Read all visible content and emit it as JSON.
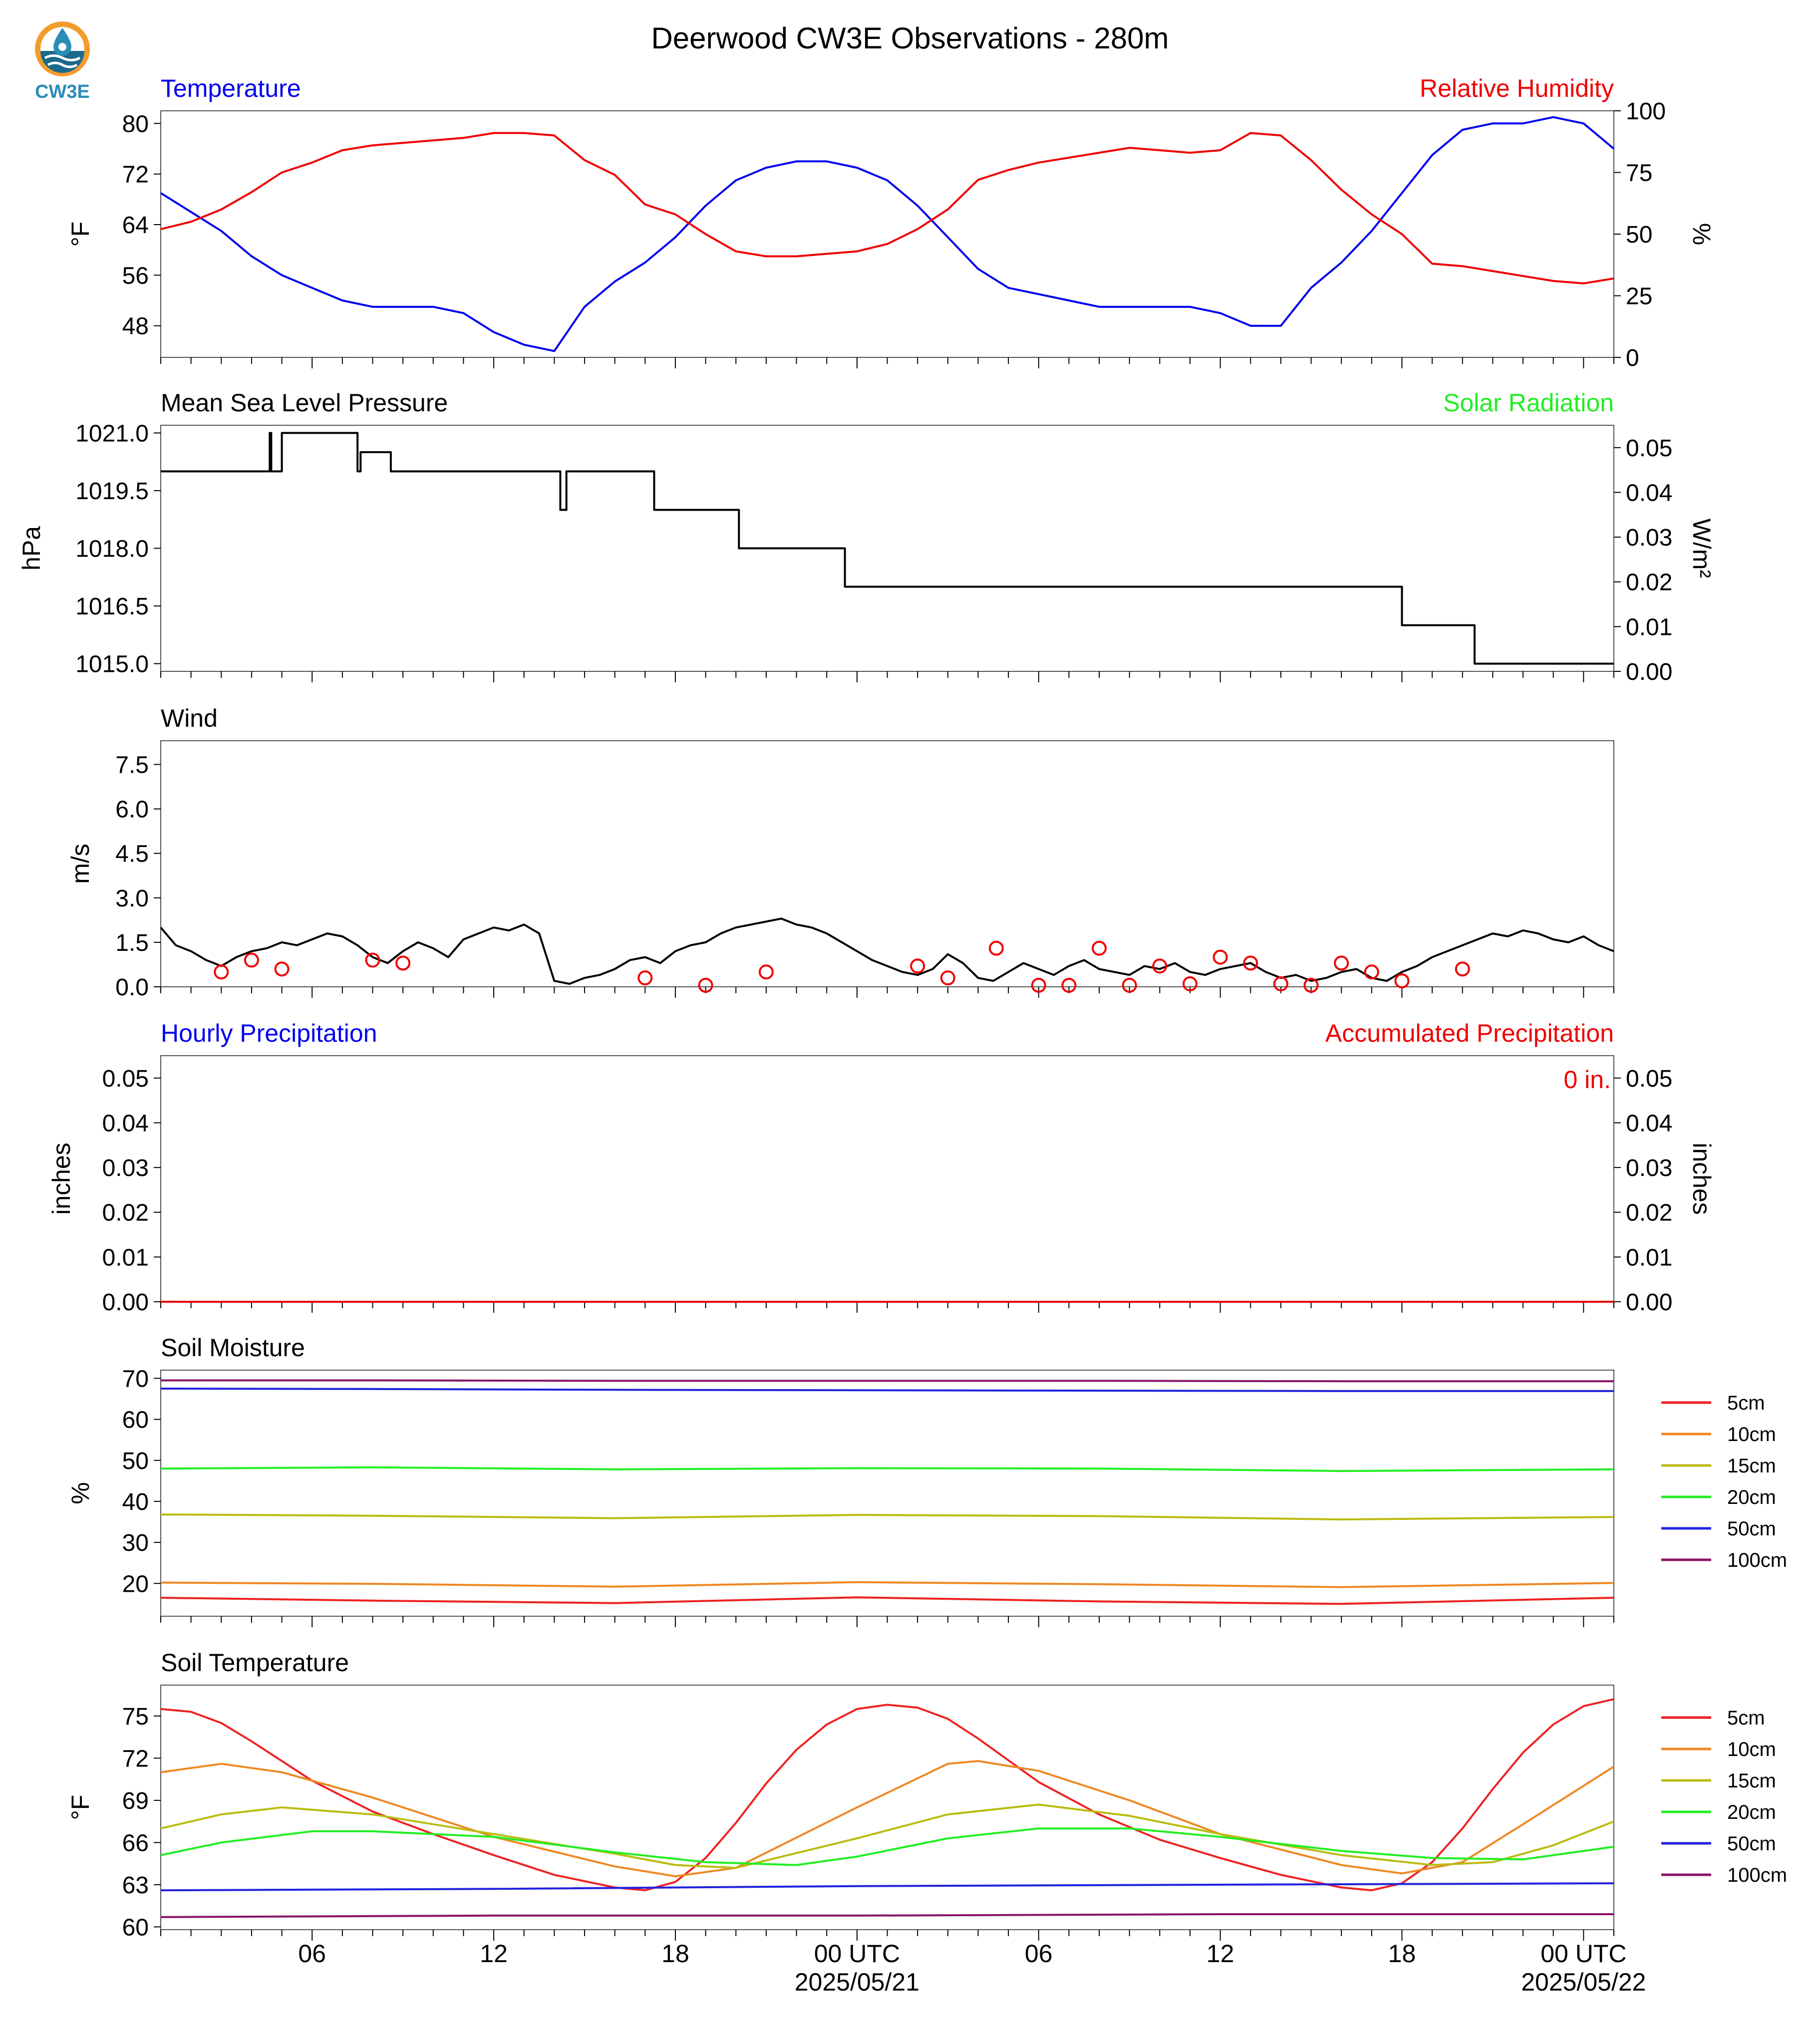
{
  "title": "Deerwood CW3E Observations - 280m",
  "logo": {
    "text": "CW3E"
  },
  "x_axis": {
    "tick_labels": [
      "06",
      "12",
      "18",
      "00 UTC",
      "06",
      "12",
      "18",
      "00 UTC"
    ],
    "tick_hours": [
      6,
      12,
      18,
      24,
      30,
      36,
      42,
      48
    ],
    "date_labels": [
      "2025/05/21",
      "2025/05/22"
    ],
    "range_hours": [
      1,
      49
    ]
  },
  "chart_data": [
    {
      "type": "line",
      "title_left": "Temperature",
      "title_right": "Relative Humidity",
      "ylabel_left": "°F",
      "ylabel_right": "%",
      "ylim_left": [
        43,
        82
      ],
      "ylim_right": [
        0,
        100
      ],
      "yticks_left": [
        "80",
        "72",
        "64",
        "56",
        "48"
      ],
      "yticks_right": [
        "100",
        "75",
        "50",
        "25",
        "0"
      ],
      "colors": {
        "left": "#0000ee",
        "right": "#ee0000"
      },
      "series": [
        {
          "name": "Temperature",
          "axis": "left",
          "color": "#0000ee",
          "x": [
            1,
            2,
            3,
            4,
            5,
            6,
            7,
            8,
            9,
            10,
            11,
            12,
            13,
            14,
            15,
            16,
            17,
            18,
            19,
            20,
            21,
            22,
            23,
            24,
            25,
            26,
            27,
            28,
            29,
            30,
            31,
            32,
            33,
            34,
            35,
            36,
            37,
            38,
            39,
            40,
            41,
            42,
            43,
            44,
            45,
            46,
            47,
            48,
            49
          ],
          "y": [
            69,
            66,
            63,
            59,
            56,
            54,
            52,
            51,
            51,
            51,
            50,
            47,
            45,
            44,
            51,
            55,
            58,
            62,
            67,
            71,
            73,
            74,
            74,
            73,
            71,
            67,
            62,
            57,
            54,
            53,
            52,
            51,
            51,
            51,
            51,
            50,
            48,
            48,
            54,
            58,
            63,
            69,
            75,
            79,
            80,
            80,
            81,
            80,
            76
          ]
        },
        {
          "name": "Relative Humidity",
          "axis": "right",
          "color": "#ee0000",
          "x": [
            1,
            2,
            3,
            4,
            5,
            6,
            7,
            8,
            9,
            10,
            11,
            12,
            13,
            14,
            15,
            16,
            17,
            18,
            19,
            20,
            21,
            22,
            23,
            24,
            25,
            26,
            27,
            28,
            29,
            30,
            31,
            32,
            33,
            34,
            35,
            36,
            37,
            38,
            39,
            40,
            41,
            42,
            43,
            44,
            45,
            46,
            47,
            48,
            49
          ],
          "y": [
            52,
            55,
            60,
            67,
            75,
            79,
            84,
            86,
            87,
            88,
            89,
            91,
            91,
            90,
            80,
            74,
            62,
            58,
            50,
            43,
            41,
            41,
            42,
            43,
            46,
            52,
            60,
            72,
            76,
            79,
            81,
            83,
            85,
            84,
            83,
            84,
            91,
            90,
            80,
            68,
            58,
            50,
            38,
            37,
            35,
            33,
            31,
            30,
            32
          ]
        }
      ]
    },
    {
      "type": "line",
      "title_left": "Mean Sea Level Pressure",
      "title_right": "Solar Radiation",
      "ylabel_left": "hPa",
      "ylabel_right": "W/m²",
      "ylim_left": [
        1014.8,
        1021.2
      ],
      "ylim_right": [
        0.0,
        0.055
      ],
      "yticks_left": [
        "1021.0",
        "1019.5",
        "1018.0",
        "1016.5",
        "1015.0"
      ],
      "yticks_right": [
        "0.05",
        "0.04",
        "0.03",
        "0.02",
        "0.01",
        "0.00"
      ],
      "colors": {
        "left": "#000000",
        "right": "#22ee22"
      },
      "series": [
        {
          "name": "Mean Sea Level Pressure",
          "axis": "left",
          "color": "#000000",
          "x": [
            1,
            4.6,
            4.6,
            4.65,
            4.65,
            5,
            5,
            7.5,
            7.5,
            7.6,
            7.6,
            8.6,
            8.6,
            9,
            9,
            14.2,
            14.2,
            14.4,
            14.4,
            17.3,
            17.3,
            20.1,
            20.1,
            23.6,
            23.6,
            31.2,
            31.2,
            42,
            42,
            44.4,
            44.4,
            45.4,
            45.4,
            49
          ],
          "y": [
            1020.0,
            1020.0,
            1021.0,
            1021.0,
            1020.0,
            1020.0,
            1021.0,
            1021.0,
            1020.0,
            1020.0,
            1020.5,
            1020.5,
            1020.0,
            1020.0,
            1020.0,
            1020.0,
            1019.0,
            1019.0,
            1020.0,
            1020.0,
            1019.0,
            1019.0,
            1018.0,
            1018.0,
            1017.0,
            1017.0,
            1017.0,
            1017.0,
            1016.0,
            1016.0,
            1015.0,
            1015.0,
            1015.0,
            1015.0
          ]
        }
      ]
    },
    {
      "type": "line",
      "title_left": "Wind",
      "ylabel_left": "m/s",
      "ylim_left": [
        0,
        8.3
      ],
      "yticks_left": [
        "7.5",
        "6.0",
        "4.5",
        "3.0",
        "1.5",
        "0.0"
      ],
      "series": [
        {
          "name": "Wind",
          "color": "#000000",
          "x": [
            1,
            1.5,
            2,
            2.5,
            3,
            3.5,
            4,
            4.5,
            5,
            5.5,
            6,
            6.5,
            7,
            7.5,
            8,
            8.5,
            9,
            9.5,
            10,
            10.5,
            11,
            11.5,
            12,
            12.5,
            13,
            13.5,
            14,
            14.5,
            15,
            15.5,
            16,
            16.5,
            17,
            17.5,
            18,
            18.5,
            19,
            19.5,
            20,
            20.5,
            21,
            21.5,
            22,
            22.5,
            23,
            23.5,
            24,
            24.5,
            25,
            25.5,
            26,
            26.5,
            27,
            27.5,
            28,
            28.5,
            29,
            29.5,
            30,
            30.5,
            31,
            31.5,
            32,
            32.5,
            33,
            33.5,
            34,
            34.5,
            35,
            35.5,
            36,
            36.5,
            37,
            37.5,
            38,
            38.5,
            39,
            39.5,
            40,
            40.5,
            41,
            41.5,
            42,
            42.5,
            43,
            43.5,
            44,
            44.5,
            45,
            45.5,
            46,
            46.5,
            47,
            47.5,
            48,
            48.5,
            49
          ],
          "y": [
            2.0,
            1.4,
            1.2,
            0.9,
            0.7,
            1.0,
            1.2,
            1.3,
            1.5,
            1.4,
            1.6,
            1.8,
            1.7,
            1.4,
            1.0,
            0.8,
            1.2,
            1.5,
            1.3,
            1.0,
            1.6,
            1.8,
            2.0,
            1.9,
            2.1,
            1.8,
            0.2,
            0.1,
            0.3,
            0.4,
            0.6,
            0.9,
            1.0,
            0.8,
            1.2,
            1.4,
            1.5,
            1.8,
            2.0,
            2.1,
            2.2,
            2.3,
            2.1,
            2.0,
            1.8,
            1.5,
            1.2,
            0.9,
            0.7,
            0.5,
            0.4,
            0.6,
            1.1,
            0.8,
            0.3,
            0.2,
            0.5,
            0.8,
            0.6,
            0.4,
            0.7,
            0.9,
            0.6,
            0.5,
            0.4,
            0.7,
            0.6,
            0.8,
            0.5,
            0.4,
            0.6,
            0.7,
            0.8,
            0.5,
            0.3,
            0.4,
            0.2,
            0.3,
            0.5,
            0.6,
            0.3,
            0.2,
            0.5,
            0.7,
            1.0,
            1.2,
            1.4,
            1.6,
            1.8,
            1.7,
            1.9,
            1.8,
            1.6,
            1.5,
            1.7,
            1.4,
            1.2
          ]
        }
      ],
      "wind_circles_x": [
        3,
        4,
        5,
        8,
        9,
        17,
        19,
        21,
        26,
        27,
        28.6,
        30,
        31,
        32,
        33,
        34,
        35,
        36,
        37,
        38,
        39,
        40,
        41,
        42,
        44
      ],
      "wind_circles_y": [
        0.5,
        0.9,
        0.6,
        0.9,
        0.8,
        0.3,
        0.05,
        0.5,
        0.7,
        0.3,
        1.3,
        0.05,
        0.05,
        1.3,
        0.05,
        0.7,
        0.1,
        1.0,
        0.8,
        0.1,
        0.05,
        0.8,
        0.5,
        0.2,
        0.6
      ]
    },
    {
      "type": "line",
      "title_left": "Hourly Precipitation",
      "title_right": "Accumulated Precipitation",
      "ylabel_left": "inches",
      "ylabel_right": "inches",
      "ylim_left": [
        0,
        0.055
      ],
      "yticks_left": [
        "0.05",
        "0.04",
        "0.03",
        "0.02",
        "0.01",
        "0.00"
      ],
      "yticks_right": [
        "0.05",
        "0.04",
        "0.03",
        "0.02",
        "0.01",
        "0.00"
      ],
      "annotation": "0 in.",
      "colors": {
        "left": "#0000ee",
        "right": "#ee0000"
      },
      "series": [
        {
          "name": "Accumulated Precipitation",
          "color": "#ee0000",
          "x": [
            1,
            49
          ],
          "y": [
            0,
            0
          ]
        }
      ]
    },
    {
      "type": "line",
      "title_left": "Soil Moisture",
      "ylabel_left": "%",
      "ylim_left": [
        12,
        72
      ],
      "yticks_left": [
        "70",
        "60",
        "50",
        "40",
        "30",
        "20"
      ],
      "legend_position": "right",
      "series": [
        {
          "name": "5cm",
          "color": "#ee2222",
          "x": [
            1,
            8,
            16,
            24,
            32,
            40,
            49
          ],
          "y": [
            16.5,
            15.8,
            15.2,
            16.6,
            15.6,
            15.0,
            16.5
          ]
        },
        {
          "name": "10cm",
          "color": "#ee8822",
          "x": [
            1,
            8,
            16,
            24,
            32,
            40,
            49
          ],
          "y": [
            20.2,
            19.9,
            19.2,
            20.3,
            19.8,
            19.1,
            20.1
          ]
        },
        {
          "name": "15cm",
          "color": "#bbbb11",
          "x": [
            1,
            8,
            16,
            24,
            32,
            40,
            49
          ],
          "y": [
            36.8,
            36.5,
            35.9,
            36.7,
            36.4,
            35.6,
            36.2
          ]
        },
        {
          "name": "20cm",
          "color": "#22ee22",
          "x": [
            1,
            8,
            16,
            24,
            32,
            40,
            49
          ],
          "y": [
            48.0,
            48.3,
            47.8,
            48.1,
            48.0,
            47.4,
            47.8
          ]
        },
        {
          "name": "50cm",
          "color": "#2222dd",
          "x": [
            1,
            8,
            16,
            24,
            32,
            40,
            49
          ],
          "y": [
            67.5,
            67.4,
            67.2,
            67.1,
            67.0,
            66.9,
            66.9
          ]
        },
        {
          "name": "100cm",
          "color": "#881166",
          "x": [
            1,
            8,
            16,
            24,
            32,
            40,
            49
          ],
          "y": [
            69.5,
            69.5,
            69.4,
            69.4,
            69.4,
            69.3,
            69.3
          ]
        }
      ]
    },
    {
      "type": "line",
      "title_left": "Soil Temperature",
      "ylabel_left": "°F",
      "ylim_left": [
        59.8,
        77.2
      ],
      "yticks_left": [
        "75",
        "72",
        "69",
        "66",
        "63",
        "60"
      ],
      "legend_position": "right",
      "series": [
        {
          "name": "5cm",
          "color": "#ee2222",
          "x": [
            1,
            2,
            3,
            4,
            6,
            8,
            10,
            12,
            14,
            16,
            17,
            18,
            19,
            20,
            21,
            22,
            23,
            24,
            25,
            26,
            27,
            28,
            30,
            32,
            34,
            36,
            38,
            40,
            41,
            42,
            43,
            44,
            45,
            46,
            47,
            48,
            49
          ],
          "y": [
            75.5,
            75.3,
            74.5,
            73.2,
            70.4,
            68.2,
            66.6,
            65.1,
            63.7,
            62.8,
            62.6,
            63.2,
            64.9,
            67.4,
            70.2,
            72.6,
            74.4,
            75.5,
            75.8,
            75.6,
            74.8,
            73.4,
            70.3,
            68.0,
            66.2,
            64.9,
            63.7,
            62.8,
            62.6,
            63.1,
            64.6,
            67.0,
            69.8,
            72.4,
            74.4,
            75.7,
            76.2
          ]
        },
        {
          "name": "10cm",
          "color": "#ee8822",
          "x": [
            1,
            3,
            5,
            8,
            12,
            16,
            18,
            20,
            24,
            27,
            28,
            30,
            33,
            36,
            40,
            42,
            44,
            46,
            49
          ],
          "y": [
            71.0,
            71.6,
            71.0,
            69.2,
            66.4,
            64.3,
            63.6,
            64.2,
            68.5,
            71.6,
            71.8,
            71.1,
            69.0,
            66.6,
            64.4,
            63.8,
            64.6,
            67.3,
            71.4
          ]
        },
        {
          "name": "15cm",
          "color": "#bbbb11",
          "x": [
            1,
            3,
            5,
            8,
            12,
            16,
            18,
            20,
            24,
            27,
            30,
            33,
            36,
            40,
            43,
            45,
            47,
            49
          ],
          "y": [
            67.0,
            68.0,
            68.5,
            68.0,
            66.6,
            65.2,
            64.4,
            64.2,
            66.3,
            68.0,
            68.7,
            67.9,
            66.6,
            65.1,
            64.4,
            64.6,
            65.8,
            67.5
          ]
        },
        {
          "name": "20cm",
          "color": "#22ee22",
          "x": [
            1,
            3,
            6,
            8,
            12,
            16,
            19,
            22,
            24,
            27,
            30,
            33,
            36,
            40,
            43,
            46,
            49
          ],
          "y": [
            65.1,
            66.0,
            66.8,
            66.8,
            66.4,
            65.3,
            64.6,
            64.4,
            65.0,
            66.3,
            67.0,
            67.0,
            66.4,
            65.4,
            64.9,
            64.8,
            65.7
          ]
        },
        {
          "name": "50cm",
          "color": "#2222dd",
          "x": [
            1,
            12,
            24,
            36,
            49
          ],
          "y": [
            62.6,
            62.7,
            62.9,
            63.0,
            63.1
          ]
        },
        {
          "name": "100cm",
          "color": "#881166",
          "x": [
            1,
            12,
            24,
            36,
            49
          ],
          "y": [
            60.7,
            60.8,
            60.8,
            60.9,
            60.9
          ]
        }
      ]
    }
  ]
}
